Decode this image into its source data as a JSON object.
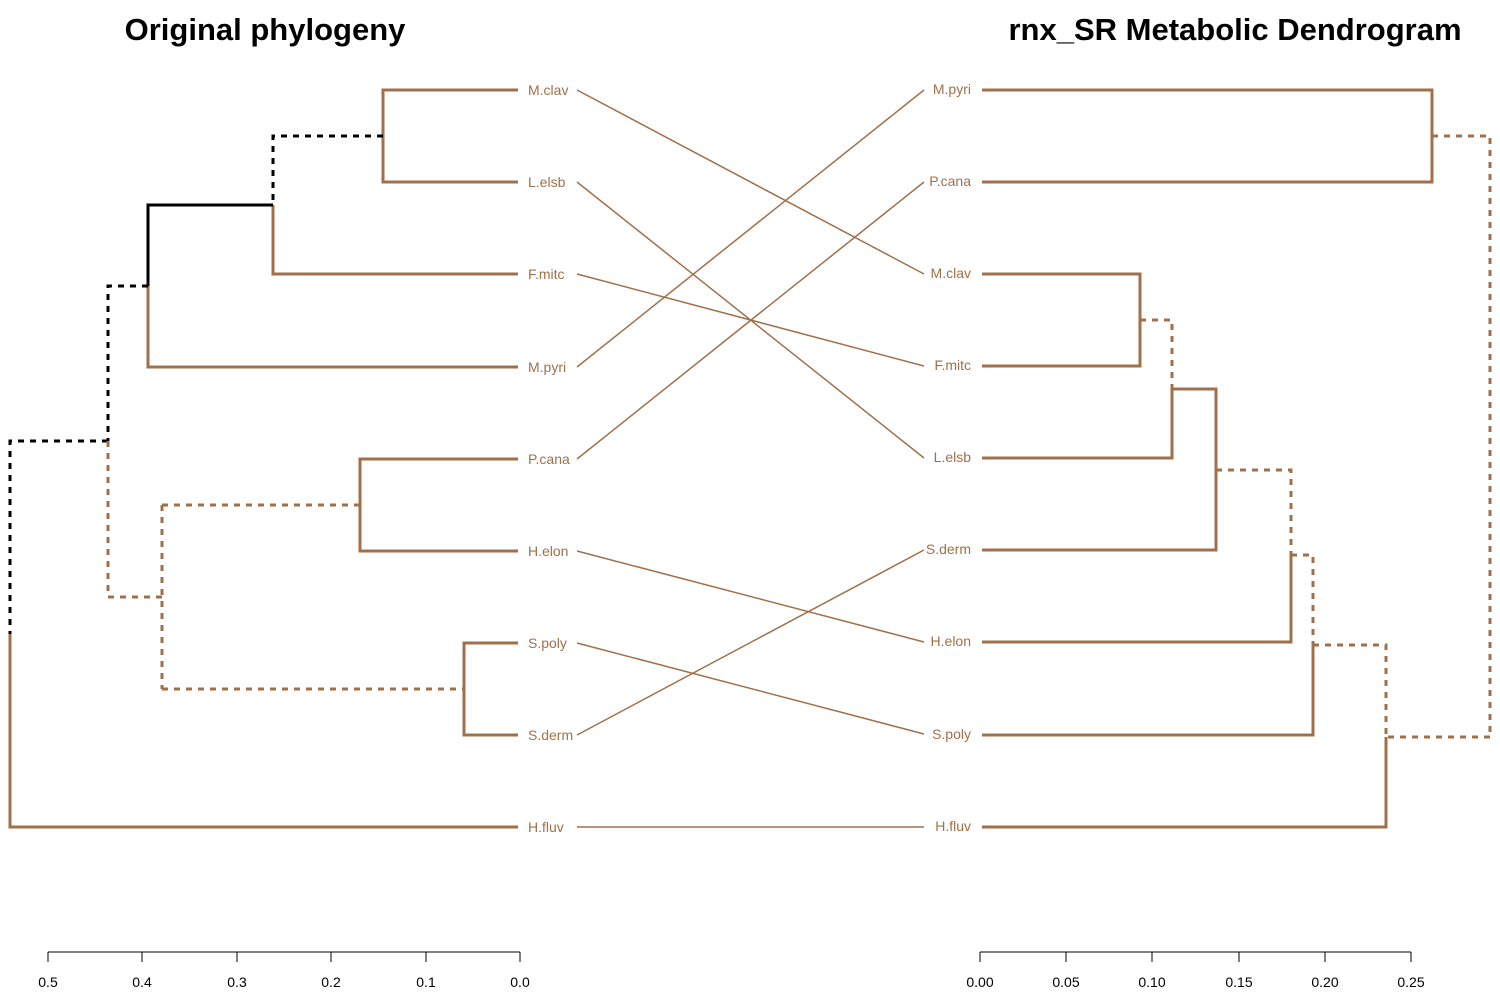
{
  "colors": {
    "brown": "#A0704A",
    "black": "#000000"
  },
  "left": {
    "title": "Original phylogeny",
    "leaves": [
      "M.clav",
      "L.elsb",
      "F.mitc",
      "M.pyri",
      "P.cana",
      "H.elon",
      "S.poly",
      "S.derm",
      "H.fluv"
    ],
    "axis": {
      "ticks": [
        "0.5",
        "0.4",
        "0.3",
        "0.2",
        "0.1",
        "0.0"
      ]
    }
  },
  "right": {
    "title": "rnx_SR Metabolic Dendrogram",
    "leaves": [
      "M.pyri",
      "P.cana",
      "M.clav",
      "F.mitc",
      "L.elsb",
      "S.derm",
      "H.elon",
      "S.poly",
      "H.fluv"
    ],
    "axis": {
      "ticks": [
        "0.00",
        "0.05",
        "0.10",
        "0.15",
        "0.20",
        "0.25"
      ]
    }
  }
}
